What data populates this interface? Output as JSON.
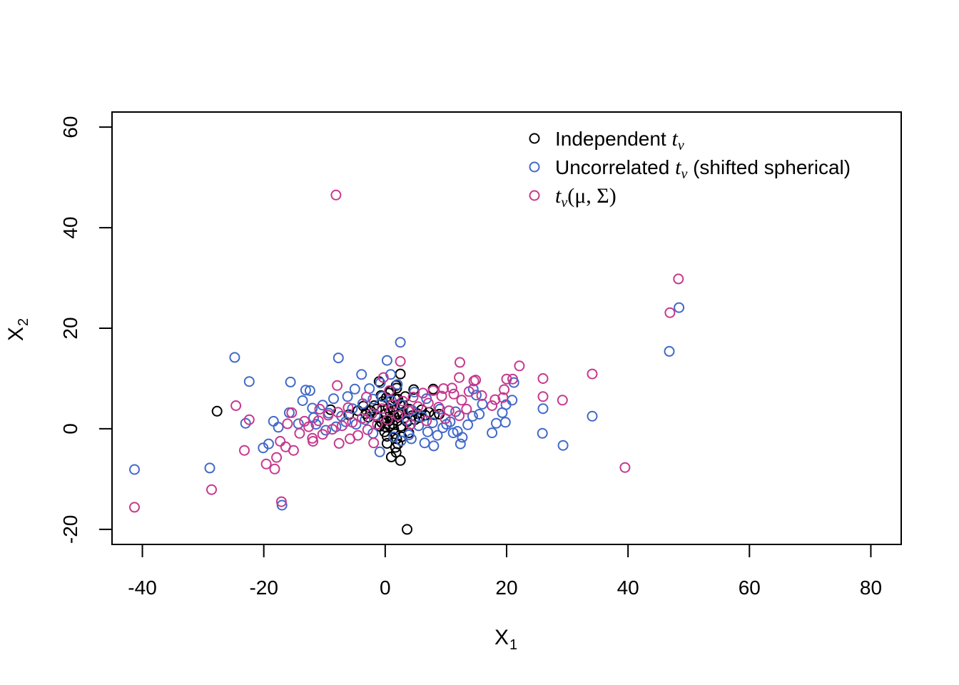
{
  "chart_data": {
    "type": "scatter",
    "title": "",
    "xlabel": "X",
    "xlabel_sub": "1",
    "ylabel": "X",
    "ylabel_sub": "2",
    "xlim": [
      -45,
      85
    ],
    "ylim": [
      -23,
      63
    ],
    "xticks": [
      -40,
      -20,
      0,
      20,
      40,
      60,
      80
    ],
    "yticks": [
      -20,
      0,
      20,
      40,
      60
    ],
    "xtick_labels": [
      "-40",
      "-20",
      "0",
      "20",
      "40",
      "60",
      "80"
    ],
    "ytick_labels": [
      "-20",
      "0",
      "20",
      "40",
      "60"
    ],
    "grid": false,
    "legend_position": "top-right",
    "marker": "open-circle",
    "series": [
      {
        "key": "independent",
        "name": "Independent tν",
        "legend_text": "Independent ",
        "legend_math": "t",
        "legend_math_sub": "ν",
        "legend_suffix": "",
        "color": "#000000",
        "points": [
          [
            -27.7,
            3.5
          ],
          [
            3.6,
            -20.0
          ],
          [
            2.5,
            -6.3
          ],
          [
            1.0,
            -5.6
          ],
          [
            1.8,
            -4.7
          ],
          [
            -9.0,
            3.8
          ],
          [
            2.5,
            10.9
          ],
          [
            -1.0,
            9.4
          ],
          [
            0.9,
            7.5
          ],
          [
            1.8,
            8.6
          ],
          [
            -6.0,
            2.8
          ],
          [
            -4.5,
            3.6
          ],
          [
            -3.2,
            3.0
          ],
          [
            -2.4,
            3.6
          ],
          [
            -1.8,
            4.6
          ],
          [
            -1.2,
            2.2
          ],
          [
            -0.6,
            1.3
          ],
          [
            -0.4,
            5.4
          ],
          [
            0.2,
            6.2
          ],
          [
            0.5,
            4.1
          ],
          [
            0.8,
            3.3
          ],
          [
            1.0,
            2.1
          ],
          [
            1.2,
            1.0
          ],
          [
            1.4,
            0.0
          ],
          [
            1.6,
            -1.0
          ],
          [
            1.9,
            -2.0
          ],
          [
            2.1,
            -3.0
          ],
          [
            0.3,
            -2.9
          ],
          [
            0.0,
            0.4
          ],
          [
            -0.2,
            1.6
          ],
          [
            2.4,
            4.9
          ],
          [
            2.8,
            3.2
          ],
          [
            3.2,
            2.2
          ],
          [
            3.6,
            1.4
          ],
          [
            4.0,
            3.9
          ],
          [
            4.4,
            2.6
          ],
          [
            4.9,
            1.8
          ],
          [
            5.3,
            3.0
          ],
          [
            6.0,
            3.8
          ],
          [
            6.6,
            2.7
          ],
          [
            7.2,
            3.3
          ],
          [
            8.1,
            2.8
          ],
          [
            8.9,
            2.9
          ],
          [
            7.9,
            7.9
          ],
          [
            4.7,
            7.8
          ],
          [
            3.3,
            6.4
          ],
          [
            1.6,
            6.0
          ],
          [
            0.6,
            7.1
          ],
          [
            -0.7,
            6.6
          ],
          [
            -1.4,
            3.9
          ],
          [
            -0.9,
            0.5
          ],
          [
            0.3,
            -1.5
          ],
          [
            2.7,
            -1.6
          ],
          [
            3.9,
            -0.8
          ],
          [
            2.1,
            5.9
          ],
          [
            1.1,
            4.8
          ],
          [
            1.3,
            3.7
          ],
          [
            1.5,
            2.5
          ],
          [
            2.0,
            1.6
          ],
          [
            2.3,
            2.9
          ],
          [
            -2.8,
            2.3
          ],
          [
            0.7,
            0.6
          ],
          [
            3.0,
            4.6
          ],
          [
            5.6,
            2.2
          ],
          [
            -3.6,
            4.5
          ],
          [
            1.9,
            8.1
          ],
          [
            0.1,
            3.0
          ],
          [
            2.6,
            0.5
          ],
          [
            -0.1,
            -0.6
          ],
          [
            1.7,
            -3.7
          ]
        ]
      },
      {
        "key": "uncorrelated",
        "name": "Uncorrelated tν (shifted spherical)",
        "legend_text": "Uncorrelated ",
        "legend_math": "t",
        "legend_math_sub": "ν",
        "legend_suffix": " (shifted spherical)",
        "color": "#4169C8",
        "points": [
          [
            -41.3,
            -8.1
          ],
          [
            -28.9,
            -7.8
          ],
          [
            -24.8,
            14.2
          ],
          [
            -22.4,
            9.4
          ],
          [
            -23.0,
            1.1
          ],
          [
            -18.4,
            1.5
          ],
          [
            -20.1,
            -3.8
          ],
          [
            -17.0,
            -15.2
          ],
          [
            -15.6,
            9.3
          ],
          [
            -15.8,
            3.2
          ],
          [
            -13.1,
            7.7
          ],
          [
            -12.4,
            7.6
          ],
          [
            -7.7,
            14.1
          ],
          [
            -3.9,
            10.8
          ],
          [
            0.3,
            13.6
          ],
          [
            2.5,
            17.2
          ],
          [
            46.8,
            15.4
          ],
          [
            48.4,
            24.1
          ],
          [
            34.1,
            2.5
          ],
          [
            29.3,
            -3.3
          ],
          [
            26.0,
            4.0
          ],
          [
            25.9,
            -0.9
          ],
          [
            21.2,
            9.2
          ],
          [
            20.9,
            5.7
          ],
          [
            19.9,
            4.8
          ],
          [
            19.3,
            3.2
          ],
          [
            19.8,
            1.3
          ],
          [
            18.3,
            1.1
          ],
          [
            17.6,
            -0.8
          ],
          [
            15.5,
            2.9
          ],
          [
            14.4,
            2.5
          ],
          [
            14.5,
            7.9
          ],
          [
            12.4,
            -3.0
          ],
          [
            11.9,
            -0.5
          ],
          [
            10.7,
            1.4
          ],
          [
            8.0,
            -3.4
          ],
          [
            6.5,
            -2.8
          ],
          [
            4.3,
            -2.0
          ],
          [
            2.6,
            -2.4
          ],
          [
            -0.9,
            -4.6
          ],
          [
            -5.0,
            7.9
          ],
          [
            -6.2,
            6.4
          ],
          [
            -8.5,
            6.0
          ],
          [
            -10.3,
            4.7
          ],
          [
            -12.0,
            4.1
          ],
          [
            -14.3,
            1.0
          ],
          [
            -17.6,
            0.3
          ],
          [
            -19.2,
            -3.0
          ],
          [
            -11.8,
            2.2
          ],
          [
            -9.3,
            3.1
          ],
          [
            -7.2,
            2.5
          ],
          [
            -5.4,
            4.0
          ],
          [
            -3.7,
            5.0
          ],
          [
            -2.0,
            5.9
          ],
          [
            -0.5,
            6.4
          ],
          [
            1.0,
            5.6
          ],
          [
            2.7,
            4.8
          ],
          [
            4.4,
            3.7
          ],
          [
            6.1,
            2.4
          ],
          [
            7.8,
            1.2
          ],
          [
            9.5,
            0.2
          ],
          [
            11.2,
            -0.8
          ],
          [
            12.7,
            -1.7
          ],
          [
            3.6,
            1.7
          ],
          [
            5.5,
            0.6
          ],
          [
            7.0,
            -0.6
          ],
          [
            8.6,
            -1.3
          ],
          [
            10.1,
            0.9
          ],
          [
            -1.6,
            2.7
          ],
          [
            -3.3,
            1.8
          ],
          [
            -4.8,
            0.9
          ],
          [
            -6.5,
            1.4
          ],
          [
            -8.1,
            0.4
          ],
          [
            -9.8,
            -0.3
          ],
          [
            -11.4,
            0.9
          ],
          [
            13.6,
            0.8
          ],
          [
            15.0,
            6.7
          ],
          [
            16.0,
            4.9
          ],
          [
            11.6,
            3.4
          ],
          [
            9.0,
            3.9
          ],
          [
            6.8,
            6.0
          ],
          [
            4.8,
            7.3
          ],
          [
            2.0,
            8.8
          ],
          [
            -0.8,
            9.1
          ],
          [
            -2.6,
            8.0
          ],
          [
            3.9,
            -1.2
          ],
          [
            1.4,
            -1.6
          ],
          [
            -2.0,
            -0.9
          ],
          [
            0.9,
            10.8
          ],
          [
            -13.6,
            5.6
          ]
        ]
      },
      {
        "key": "tmu",
        "name": "tν(μ, Σ)",
        "legend_text": "",
        "legend_math": "t",
        "legend_math_sub": "ν",
        "legend_suffix": "(μ, Σ)",
        "color": "#C7388E",
        "points": [
          [
            -8.1,
            46.5
          ],
          [
            -41.3,
            -15.6
          ],
          [
            -28.6,
            -12.1
          ],
          [
            -17.1,
            -14.5
          ],
          [
            -18.2,
            -8.0
          ],
          [
            -19.6,
            -7.0
          ],
          [
            -23.2,
            -4.3
          ],
          [
            -24.6,
            4.6
          ],
          [
            -22.4,
            1.8
          ],
          [
            -17.9,
            -5.7
          ],
          [
            -17.3,
            -2.5
          ],
          [
            -16.4,
            -3.6
          ],
          [
            -15.1,
            -4.3
          ],
          [
            -15.4,
            3.2
          ],
          [
            -13.3,
            1.5
          ],
          [
            39.5,
            -7.7
          ],
          [
            48.3,
            29.8
          ],
          [
            46.9,
            23.1
          ],
          [
            34.1,
            10.9
          ],
          [
            29.2,
            5.7
          ],
          [
            26.0,
            10.0
          ],
          [
            26.0,
            6.4
          ],
          [
            22.1,
            12.5
          ],
          [
            21.0,
            9.9
          ],
          [
            20.0,
            9.9
          ],
          [
            19.6,
            7.8
          ],
          [
            19.4,
            6.2
          ],
          [
            18.1,
            5.8
          ],
          [
            17.6,
            4.6
          ],
          [
            14.9,
            9.7
          ],
          [
            14.6,
            9.5
          ],
          [
            12.3,
            13.2
          ],
          [
            12.2,
            10.2
          ],
          [
            11.0,
            8.1
          ],
          [
            9.3,
            6.5
          ],
          [
            2.5,
            13.4
          ],
          [
            -0.3,
            10.2
          ],
          [
            -7.9,
            8.6
          ],
          [
            -7.6,
            -2.9
          ],
          [
            -11.9,
            -2.5
          ],
          [
            -10.3,
            -1.1
          ],
          [
            -8.7,
            -0.1
          ],
          [
            -7.1,
            0.6
          ],
          [
            -5.4,
            1.3
          ],
          [
            -3.8,
            2.1
          ],
          [
            -2.2,
            3.0
          ],
          [
            -0.5,
            4.0
          ],
          [
            1.2,
            4.8
          ],
          [
            2.9,
            5.5
          ],
          [
            4.6,
            6.3
          ],
          [
            6.2,
            7.1
          ],
          [
            7.9,
            7.6
          ],
          [
            9.6,
            8.0
          ],
          [
            11.3,
            6.9
          ],
          [
            12.6,
            5.7
          ],
          [
            -14.1,
            -0.9
          ],
          [
            -12.6,
            0.4
          ],
          [
            -11.0,
            1.6
          ],
          [
            -9.4,
            2.7
          ],
          [
            -7.8,
            3.3
          ],
          [
            -6.1,
            4.2
          ],
          [
            -4.5,
            -1.3
          ],
          [
            -2.9,
            -0.2
          ],
          [
            -1.3,
            0.9
          ],
          [
            0.4,
            1.8
          ],
          [
            2.1,
            2.6
          ],
          [
            3.8,
            3.6
          ],
          [
            5.4,
            4.4
          ],
          [
            7.1,
            5.1
          ],
          [
            8.8,
            4.3
          ],
          [
            10.5,
            3.6
          ],
          [
            12.2,
            2.6
          ],
          [
            13.4,
            3.9
          ],
          [
            -16.1,
            1.0
          ],
          [
            -10.8,
            3.9
          ],
          [
            -5.8,
            -2.0
          ],
          [
            -1.9,
            -2.8
          ],
          [
            4.2,
            0.9
          ],
          [
            6.8,
            1.6
          ],
          [
            9.9,
            2.0
          ],
          [
            0.7,
            7.6
          ],
          [
            -3.1,
            6.3
          ],
          [
            15.9,
            6.6
          ],
          [
            13.8,
            7.4
          ],
          [
            -12.0,
            -1.9
          ]
        ]
      }
    ]
  }
}
